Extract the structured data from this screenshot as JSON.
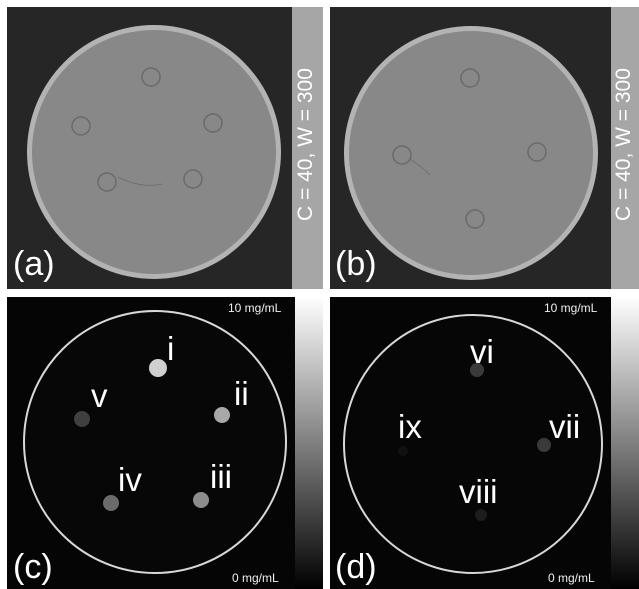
{
  "panels": {
    "a": {
      "label": "(a)",
      "window_text": "C = 40, W = 300"
    },
    "b": {
      "label": "(b)",
      "window_text": "C = 40, W = 300"
    },
    "c": {
      "label": "(c)",
      "scale_max": "10 mg/mL",
      "scale_min": "0 mg/mL",
      "inserts": {
        "i": "i",
        "ii": "ii",
        "iii": "iii",
        "iv": "iv",
        "v": "v"
      }
    },
    "d": {
      "label": "(d)",
      "scale_max": "10 mg/mL",
      "scale_min": "0 mg/mL",
      "inserts": {
        "vi": "vi",
        "vii": "vii",
        "viii": "viii",
        "ix": "ix"
      }
    }
  },
  "colors": {
    "background": "#262626",
    "phantom": "#878787",
    "rim": "#b9b9b9",
    "dark_background": "#050505",
    "window_bar": "#a6a6a6"
  }
}
